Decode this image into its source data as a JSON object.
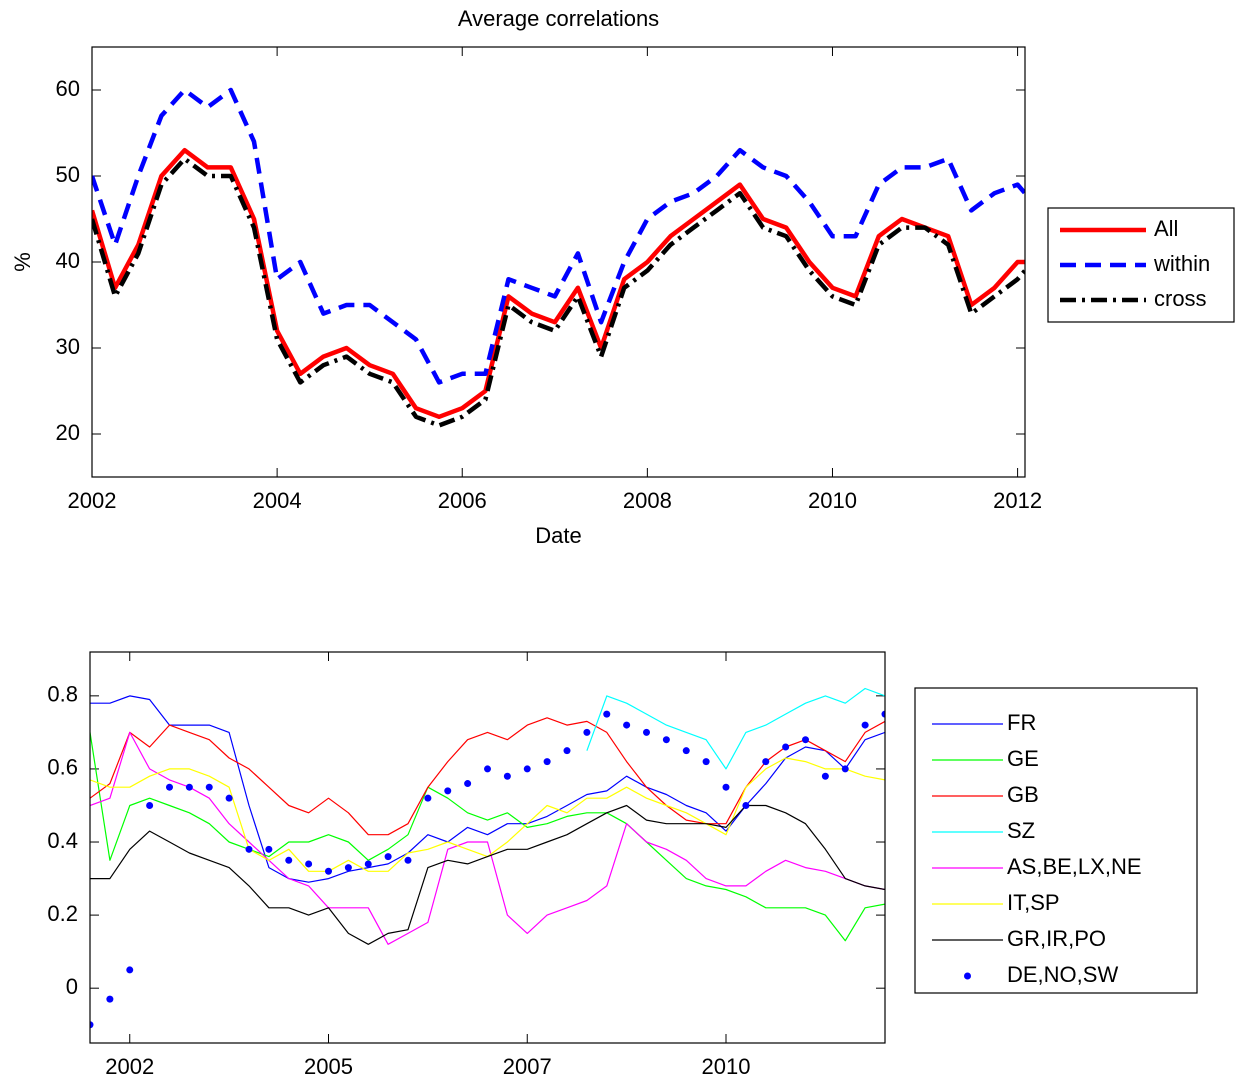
{
  "chart_data": [
    {
      "type": "line",
      "title": "Average correlations",
      "x_label": "Date",
      "y_label": "%",
      "x": [
        2002.0,
        2002.25,
        2002.5,
        2002.75,
        2003.0,
        2003.25,
        2003.5,
        2003.75,
        2004.0,
        2004.25,
        2004.5,
        2004.75,
        2005.0,
        2005.25,
        2005.5,
        2005.75,
        2006.0,
        2006.25,
        2006.5,
        2006.75,
        2007.0,
        2007.25,
        2007.5,
        2007.75,
        2008.0,
        2008.25,
        2008.5,
        2008.75,
        2009.0,
        2009.25,
        2009.5,
        2009.75,
        2010.0,
        2010.25,
        2010.5,
        2010.75,
        2011.0,
        2011.25,
        2011.5,
        2011.75,
        2012.0,
        2012.08
      ],
      "xlim": [
        2002,
        2012.08
      ],
      "xticks": [
        2002,
        2004,
        2006,
        2008,
        2010,
        2012
      ],
      "ylim": [
        15,
        65
      ],
      "yticks": [
        20,
        30,
        40,
        50,
        60
      ],
      "legend": "outside-right",
      "series": [
        {
          "name": "All",
          "color": "#ff0000",
          "style": "solid",
          "values": [
            46,
            37,
            42,
            50,
            53,
            51,
            51,
            45,
            32,
            27,
            29,
            30,
            28,
            27,
            23,
            22,
            23,
            25,
            36,
            34,
            33,
            37,
            30,
            38,
            40,
            43,
            45,
            47,
            49,
            45,
            44,
            40,
            37,
            36,
            43,
            45,
            44,
            43,
            35,
            37,
            40,
            40
          ]
        },
        {
          "name": "within",
          "color": "#0000ff",
          "style": "dashed",
          "values": [
            50,
            42,
            50,
            57,
            60,
            58,
            60,
            54,
            38,
            40,
            34,
            35,
            35,
            33,
            31,
            26,
            27,
            27,
            38,
            37,
            36,
            41,
            33,
            40,
            45,
            47,
            48,
            50,
            53,
            51,
            50,
            47,
            43,
            43,
            49,
            51,
            51,
            52,
            46,
            48,
            49,
            48
          ]
        },
        {
          "name": "cross",
          "color": "#000000",
          "style": "dashdot",
          "values": [
            45,
            36,
            41,
            49,
            52,
            50,
            50,
            44,
            31,
            26,
            28,
            29,
            27,
            26,
            22,
            21,
            22,
            24,
            35,
            33,
            32,
            36,
            29,
            37,
            39,
            42,
            44,
            46,
            48,
            44,
            43,
            39,
            36,
            35,
            42,
            44,
            44,
            42,
            34,
            36,
            38,
            39
          ]
        }
      ]
    },
    {
      "type": "line",
      "categories": [
        null,
        null,
        "2002",
        null,
        null,
        null,
        null,
        null,
        null,
        null,
        null,
        null,
        "2005",
        null,
        null,
        null,
        null,
        null,
        null,
        null,
        null,
        null,
        "2007",
        null,
        null,
        null,
        null,
        null,
        null,
        null,
        null,
        null,
        "2010",
        null,
        null,
        null,
        null,
        null,
        null,
        null,
        null
      ],
      "ylim": [
        -0.15,
        0.92
      ],
      "yticks": [
        0,
        0.2,
        0.4,
        0.6,
        0.8
      ],
      "legend": "outside-right",
      "series": [
        {
          "name": "FR",
          "color": "#0000ff",
          "style": "solid",
          "values": [
            0.78,
            0.78,
            0.8,
            0.79,
            0.72,
            0.72,
            0.72,
            0.7,
            0.5,
            0.33,
            0.3,
            0.29,
            0.3,
            0.32,
            0.33,
            0.34,
            0.37,
            0.42,
            0.4,
            0.44,
            0.42,
            0.45,
            0.45,
            0.47,
            0.5,
            0.53,
            0.54,
            0.58,
            0.55,
            0.53,
            0.5,
            0.48,
            0.43,
            0.5,
            0.56,
            0.63,
            0.66,
            0.65,
            0.6,
            0.68,
            0.7
          ]
        },
        {
          "name": "GE",
          "color": "#00ff00",
          "style": "solid",
          "values": [
            0.7,
            0.35,
            0.5,
            0.52,
            0.5,
            0.48,
            0.45,
            0.4,
            0.38,
            0.36,
            0.4,
            0.4,
            0.42,
            0.4,
            0.35,
            0.38,
            0.42,
            0.55,
            0.52,
            0.48,
            0.46,
            0.48,
            0.44,
            0.45,
            0.47,
            0.48,
            0.48,
            0.45,
            0.4,
            0.35,
            0.3,
            0.28,
            0.27,
            0.25,
            0.22,
            0.22,
            0.22,
            0.2,
            0.13,
            0.22,
            0.23
          ]
        },
        {
          "name": "GB",
          "color": "#ff0000",
          "style": "solid",
          "values": [
            0.52,
            0.56,
            0.7,
            0.66,
            0.72,
            0.7,
            0.68,
            0.63,
            0.6,
            0.55,
            0.5,
            0.48,
            0.52,
            0.48,
            0.42,
            0.42,
            0.45,
            0.55,
            0.62,
            0.68,
            0.7,
            0.68,
            0.72,
            0.74,
            0.72,
            0.73,
            0.7,
            0.62,
            0.55,
            0.5,
            0.46,
            0.45,
            0.45,
            0.55,
            0.62,
            0.66,
            0.68,
            0.65,
            0.62,
            0.7,
            0.73
          ]
        },
        {
          "name": "SZ",
          "color": "#00ffff",
          "style": "solid",
          "values": [
            null,
            null,
            null,
            null,
            null,
            null,
            null,
            null,
            null,
            null,
            null,
            null,
            null,
            null,
            null,
            null,
            null,
            null,
            null,
            null,
            null,
            null,
            null,
            null,
            null,
            0.65,
            0.8,
            0.78,
            0.75,
            0.72,
            0.7,
            0.68,
            0.6,
            0.7,
            0.72,
            0.75,
            0.78,
            0.8,
            0.78,
            0.82,
            0.8
          ]
        },
        {
          "name": "AS,BE,LX,NE",
          "color": "#ff00ff",
          "style": "solid",
          "values": [
            0.5,
            0.52,
            0.7,
            0.6,
            0.57,
            0.55,
            0.52,
            0.45,
            0.4,
            0.35,
            0.3,
            0.28,
            0.22,
            0.22,
            0.22,
            0.12,
            0.15,
            0.18,
            0.38,
            0.4,
            0.4,
            0.2,
            0.15,
            0.2,
            0.22,
            0.24,
            0.28,
            0.45,
            0.4,
            0.38,
            0.35,
            0.3,
            0.28,
            0.28,
            0.32,
            0.35,
            0.33,
            0.32,
            0.3,
            0.28,
            0.27
          ]
        },
        {
          "name": "IT,SP",
          "color": "#ffff00",
          "style": "solid",
          "values": [
            0.57,
            0.55,
            0.55,
            0.58,
            0.6,
            0.6,
            0.58,
            0.55,
            0.38,
            0.35,
            0.38,
            0.32,
            0.32,
            0.35,
            0.32,
            0.32,
            0.37,
            0.38,
            0.4,
            0.38,
            0.36,
            0.4,
            0.45,
            0.5,
            0.48,
            0.52,
            0.52,
            0.55,
            0.52,
            0.5,
            0.48,
            0.45,
            0.42,
            0.55,
            0.6,
            0.63,
            0.62,
            0.6,
            0.6,
            0.58,
            0.57
          ]
        },
        {
          "name": "GR,IR,PO",
          "color": "#000000",
          "style": "solid",
          "values": [
            0.3,
            0.3,
            0.38,
            0.43,
            0.4,
            0.37,
            0.35,
            0.33,
            0.28,
            0.22,
            0.22,
            0.2,
            0.22,
            0.15,
            0.12,
            0.15,
            0.16,
            0.33,
            0.35,
            0.34,
            0.36,
            0.38,
            0.38,
            0.4,
            0.42,
            0.45,
            0.48,
            0.5,
            0.46,
            0.45,
            0.45,
            0.45,
            0.44,
            0.5,
            0.5,
            0.48,
            0.45,
            0.38,
            0.3,
            0.28,
            0.27
          ]
        },
        {
          "name": "DE,NO,SW",
          "color": "#0000ff",
          "style": "dots",
          "values": [
            -0.1,
            -0.03,
            0.05,
            0.5,
            0.55,
            0.55,
            0.55,
            0.52,
            0.38,
            0.38,
            0.35,
            0.34,
            0.32,
            0.33,
            0.34,
            0.36,
            0.35,
            0.52,
            0.54,
            0.56,
            0.6,
            0.58,
            0.6,
            0.62,
            0.65,
            0.7,
            0.75,
            0.72,
            0.7,
            0.68,
            0.65,
            0.62,
            0.55,
            0.5,
            0.62,
            0.66,
            0.68,
            0.58,
            0.6,
            0.72,
            0.75
          ]
        }
      ]
    }
  ]
}
